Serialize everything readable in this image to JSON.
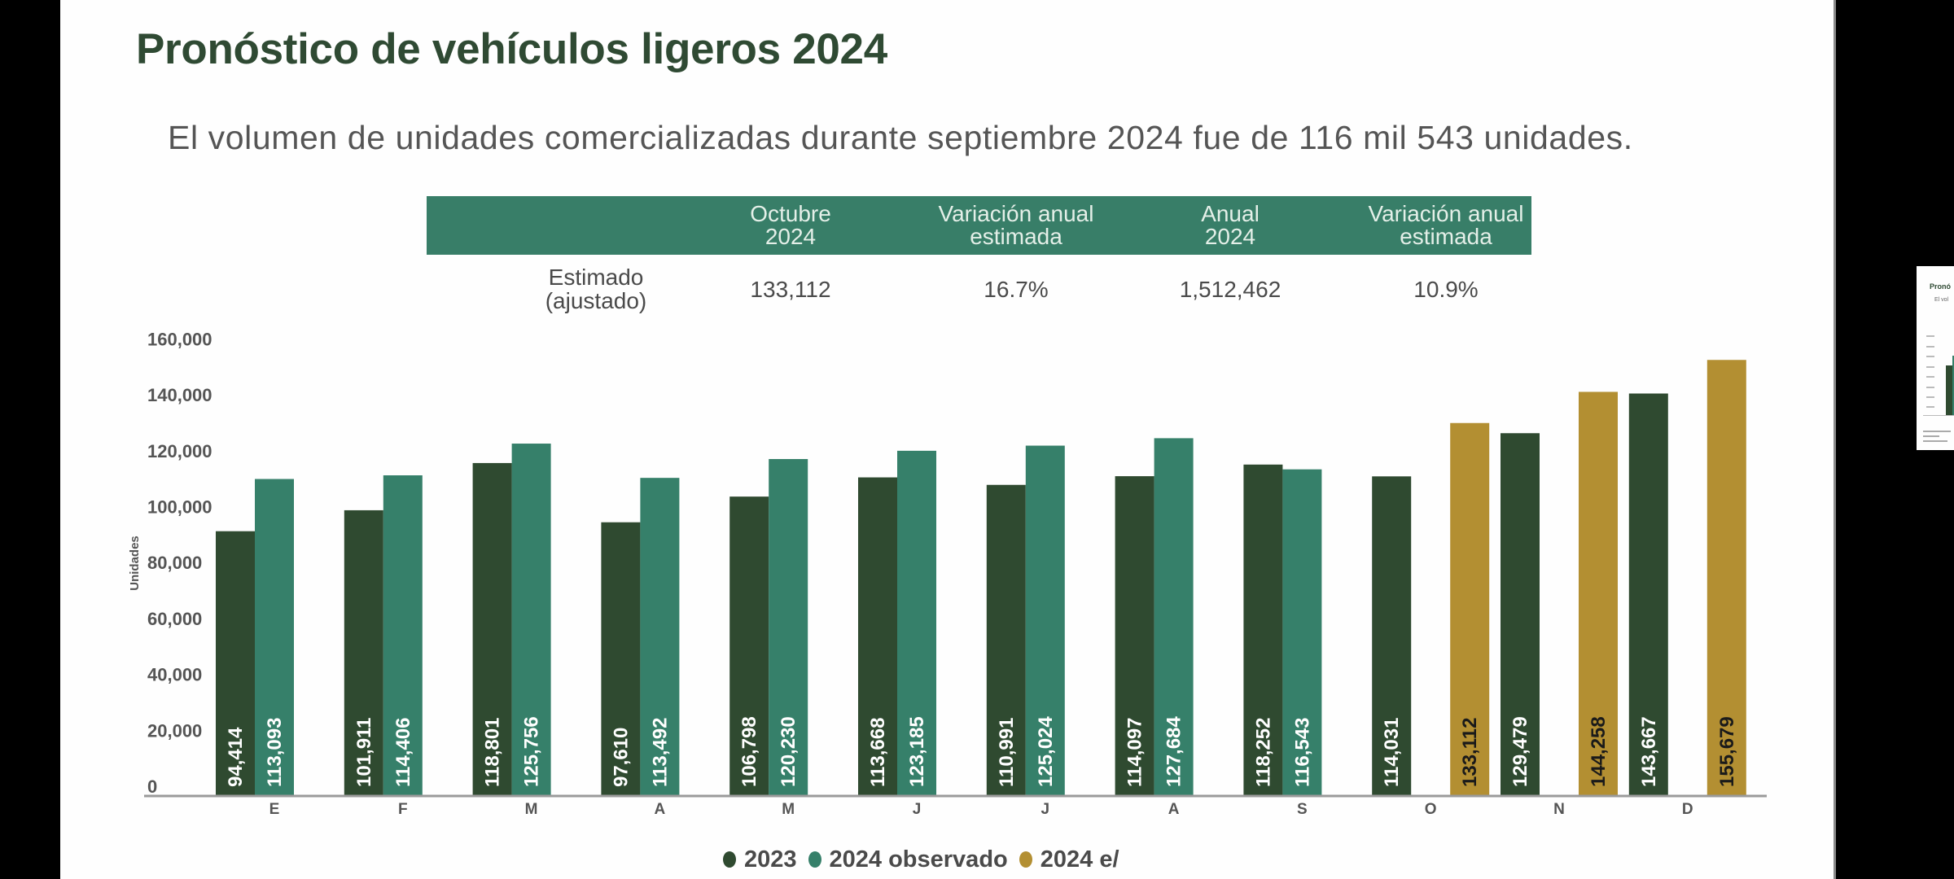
{
  "slide": {
    "title": "Pronóstico de vehículos ligeros 2024",
    "subtitle": "El volumen de unidades comercializadas durante septiembre 2024 fue de 116 mil 543 unidades."
  },
  "summary_table": {
    "headers": [
      {
        "line1": "Octubre",
        "line2": "2024"
      },
      {
        "line1": "Variación anual",
        "line2": "estimada"
      },
      {
        "line1": "Anual",
        "line2": "2024"
      },
      {
        "line1": "Variación anual",
        "line2": "estimada"
      }
    ],
    "row_label": {
      "line1": "Estimado",
      "line2": "(ajustado)"
    },
    "values": [
      "133,112",
      "16.7%",
      "1,512,462",
      "10.9%"
    ]
  },
  "colors": {
    "series_2023": "#2f4a30",
    "series_2024_obs": "#36806a",
    "series_2024_est": "#b38f32",
    "title": "#2f4a33",
    "table_header": "#387e68"
  },
  "chart_data": {
    "type": "bar",
    "title": "",
    "xlabel": "",
    "ylabel": "Unidades",
    "ylim": [
      0,
      160000
    ],
    "yticks": [
      0,
      20000,
      40000,
      60000,
      80000,
      100000,
      120000,
      140000,
      160000
    ],
    "ytick_labels": [
      "0",
      "20,000",
      "40,000",
      "60,000",
      "80,000",
      "100,000",
      "120,000",
      "140,000",
      "160,000"
    ],
    "categories": [
      "E",
      "F",
      "M",
      "A",
      "M",
      "J",
      "J",
      "A",
      "S",
      "O",
      "N",
      "D"
    ],
    "grid": false,
    "legend_position": "bottom",
    "series": [
      {
        "name": "2023",
        "color": "#2f4a30",
        "values": [
          94414,
          101911,
          118801,
          97610,
          106798,
          113668,
          110991,
          114097,
          118252,
          114031,
          129479,
          143667
        ],
        "labels": [
          "94,414",
          "101,911",
          "118,801",
          "97,610",
          "106,798",
          "113,668",
          "110,991",
          "114,097",
          "118,252",
          "114,031",
          "129,479",
          "143,667"
        ]
      },
      {
        "name": "2024 observado",
        "color": "#36806a",
        "values": [
          113093,
          114406,
          125756,
          113492,
          120230,
          123185,
          125024,
          127684,
          116543,
          null,
          null,
          null
        ],
        "labels": [
          "113,093",
          "114,406",
          "125,756",
          "113,492",
          "120,230",
          "123,185",
          "125,024",
          "127,684",
          "116,543",
          null,
          null,
          null
        ]
      },
      {
        "name": "2024 e/",
        "color": "#b38f32",
        "values": [
          null,
          null,
          null,
          null,
          null,
          null,
          null,
          null,
          null,
          133112,
          144258,
          155679
        ],
        "labels": [
          null,
          null,
          null,
          null,
          null,
          null,
          null,
          null,
          null,
          "133,112",
          "144,258",
          "155,679"
        ]
      }
    ]
  },
  "thumbnail": {
    "title_fragment": "Pronó",
    "subtitle_fragment": "El vol"
  }
}
